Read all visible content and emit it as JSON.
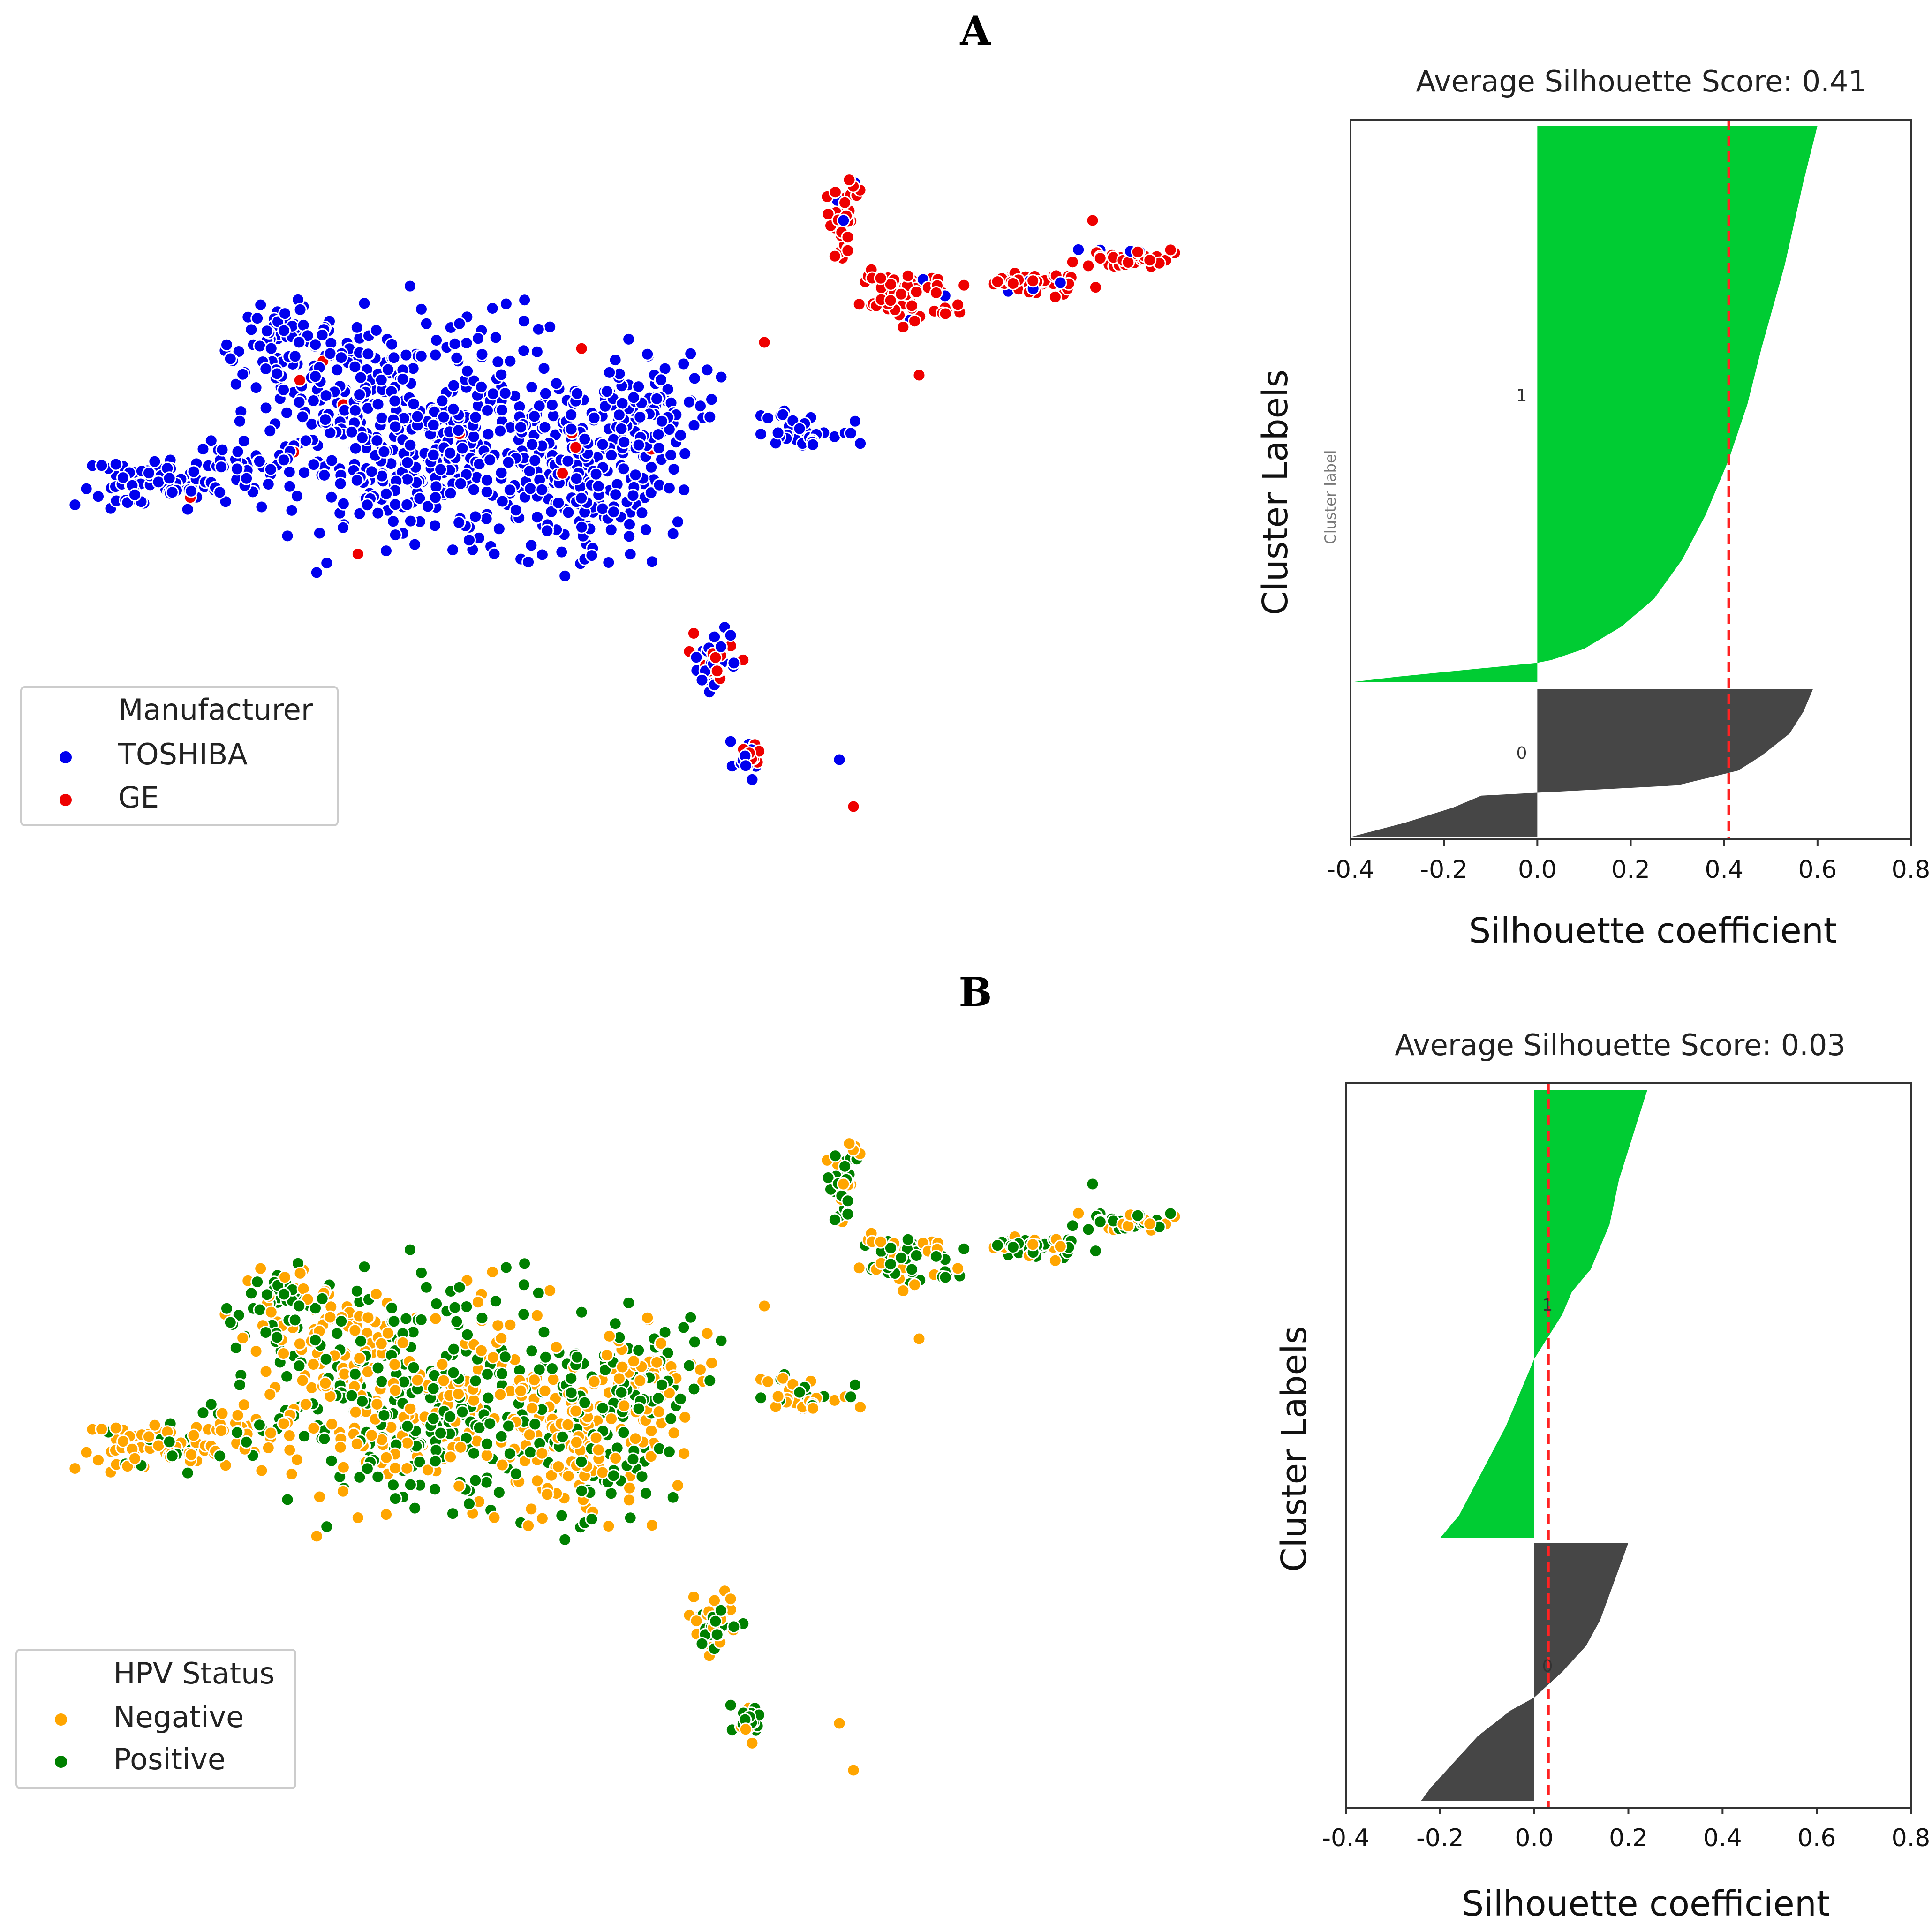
{
  "chart_data": [
    {
      "panel": "A",
      "type": "scatter",
      "legend": {
        "title": "Manufacturer",
        "placement": "bottom-left",
        "entries": [
          {
            "label": "TOSHIBA",
            "color": "#0000ee"
          },
          {
            "label": "GE",
            "color": "#ee0000"
          }
        ]
      }
    },
    {
      "panel": "A",
      "type": "area",
      "title": "Average Silhouette Score: 0.41",
      "xlabel": "Silhouette coefficient",
      "ylabel": "Cluster Labels",
      "ghost_label": "Cluster label",
      "xlim": [
        -0.4,
        0.8
      ],
      "xticks": [
        "-0.4",
        "-0.2",
        "0.0",
        "0.2",
        "0.4",
        "0.6",
        "0.8"
      ],
      "average_score": 0.41,
      "clusters": [
        {
          "label": "1",
          "color": "#00cc33",
          "min": -0.4,
          "max": 0.6
        },
        {
          "label": "0",
          "color": "#464646",
          "min": -0.4,
          "max": 0.59
        }
      ]
    },
    {
      "panel": "B",
      "type": "scatter",
      "legend": {
        "title": "HPV Status",
        "placement": "bottom-left",
        "entries": [
          {
            "label": "Negative",
            "color": "#ffa500"
          },
          {
            "label": "Positive",
            "color": "#008000"
          }
        ]
      }
    },
    {
      "panel": "B",
      "type": "area",
      "title": "Average Silhouette Score: 0.03",
      "xlabel": "Silhouette coefficient",
      "ylabel": "Cluster Labels",
      "xlim": [
        -0.4,
        0.8
      ],
      "xticks": [
        "-0.4",
        "-0.2",
        "0.0",
        "0.2",
        "0.4",
        "0.6",
        "0.8"
      ],
      "average_score": 0.03,
      "clusters": [
        {
          "label": "1",
          "color": "#00cc33",
          "min": -0.2,
          "max": 0.24
        },
        {
          "label": "0",
          "color": "#464646",
          "min": -0.24,
          "max": 0.2
        }
      ]
    }
  ],
  "panels": {
    "a": {
      "letter": "A"
    },
    "b": {
      "letter": "B"
    }
  }
}
